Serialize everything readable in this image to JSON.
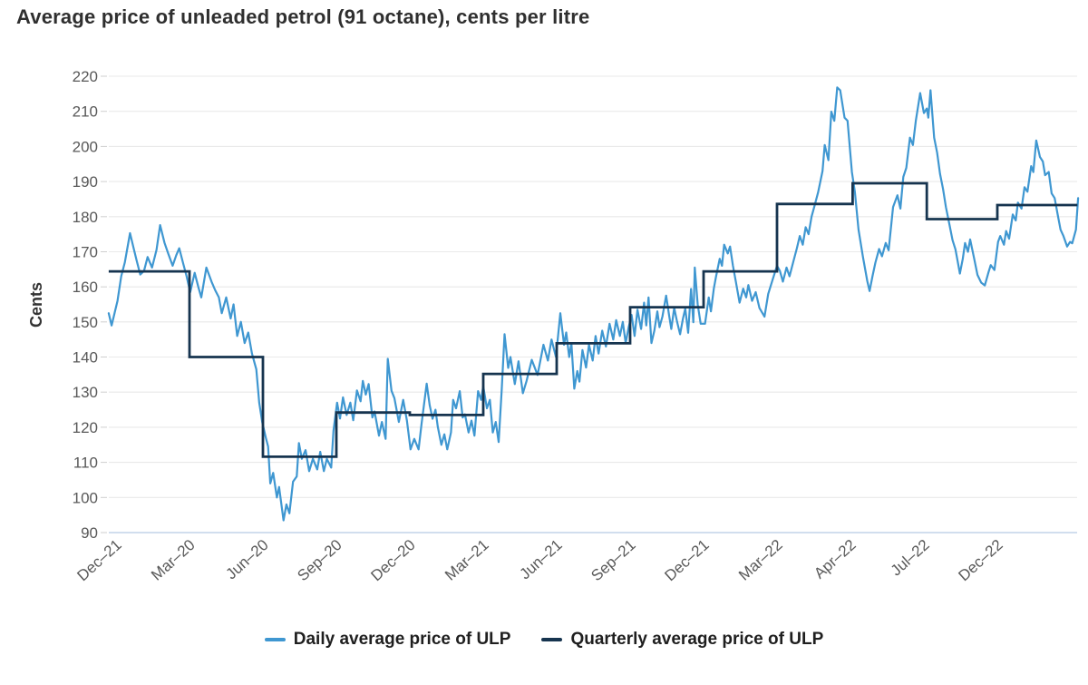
{
  "title": "Average price of unleaded petrol (91 octane), cents per litre",
  "chart_data": {
    "type": "line",
    "title": "Average price of unleaded petrol (91 octane), cents per litre",
    "xlabel": "",
    "ylabel": "Cents",
    "ylim": [
      90,
      220
    ],
    "y_ticks": [
      90,
      100,
      110,
      120,
      130,
      140,
      150,
      160,
      170,
      180,
      190,
      200,
      210,
      220
    ],
    "grid": "horizontal",
    "legend_position": "bottom-center",
    "x_tick_labels": [
      "Dec–21",
      "Mar–20",
      "Jun–20",
      "Sep–20",
      "Dec–20",
      "Mar–21",
      "Jun–21",
      "Sep–21",
      "Dec–21",
      "Mar–22",
      "Apr–22",
      "Jul–22",
      "Dec–22"
    ],
    "x_unit": "quarter index: 0 = first x tick, 1 unit = one tick interval",
    "legend": [
      {
        "label": "Daily average price of ULP",
        "color": "#3F97D1"
      },
      {
        "label": "Quarterly average price of ULP",
        "color": "#16344F"
      }
    ],
    "quarterly_steps": [
      {
        "from": -0.1,
        "to": 1.0,
        "value": 164.4
      },
      {
        "from": 1.0,
        "to": 2.0,
        "value": 140.0
      },
      {
        "from": 2.0,
        "to": 3.0,
        "value": 111.6
      },
      {
        "from": 3.0,
        "to": 4.0,
        "value": 124.2
      },
      {
        "from": 4.0,
        "to": 5.0,
        "value": 123.5
      },
      {
        "from": 5.0,
        "to": 6.0,
        "value": 135.2
      },
      {
        "from": 6.0,
        "to": 7.0,
        "value": 143.9
      },
      {
        "from": 7.0,
        "to": 8.0,
        "value": 154.2
      },
      {
        "from": 8.0,
        "to": 9.0,
        "value": 164.4
      },
      {
        "from": 9.0,
        "to": 10.03,
        "value": 183.6
      },
      {
        "from": 10.03,
        "to": 11.04,
        "value": 189.5
      },
      {
        "from": 11.04,
        "to": 12.0,
        "value": 179.3
      },
      {
        "from": 12.0,
        "to": 13.09,
        "value": 183.3
      }
    ],
    "daily_series": [
      [
        -0.1,
        152.5
      ],
      [
        -0.06,
        149.0
      ],
      [
        0.02,
        156.0
      ],
      [
        0.07,
        163.0
      ],
      [
        0.12,
        167.0
      ],
      [
        0.19,
        175.3
      ],
      [
        0.24,
        171.0
      ],
      [
        0.28,
        167.5
      ],
      [
        0.33,
        163.5
      ],
      [
        0.38,
        164.5
      ],
      [
        0.43,
        168.5
      ],
      [
        0.49,
        165.5
      ],
      [
        0.55,
        170.5
      ],
      [
        0.6,
        177.6
      ],
      [
        0.66,
        172.5
      ],
      [
        0.71,
        169.5
      ],
      [
        0.77,
        166.0
      ],
      [
        0.82,
        169.0
      ],
      [
        0.86,
        171.0
      ],
      [
        0.91,
        167.0
      ],
      [
        0.96,
        163.0
      ],
      [
        1.01,
        158.5
      ],
      [
        1.07,
        164.0
      ],
      [
        1.12,
        160.0
      ],
      [
        1.16,
        157.0
      ],
      [
        1.23,
        165.5
      ],
      [
        1.3,
        161.5
      ],
      [
        1.35,
        159.0
      ],
      [
        1.4,
        157.0
      ],
      [
        1.44,
        152.5
      ],
      [
        1.5,
        157.0
      ],
      [
        1.56,
        151.0
      ],
      [
        1.6,
        155.0
      ],
      [
        1.65,
        146.0
      ],
      [
        1.7,
        150.0
      ],
      [
        1.75,
        144.0
      ],
      [
        1.8,
        147.0
      ],
      [
        1.85,
        141.0
      ],
      [
        1.91,
        136.5
      ],
      [
        1.95,
        127.0
      ],
      [
        1.99,
        121.5
      ],
      [
        2.04,
        117.0
      ],
      [
        2.07,
        114.5
      ],
      [
        2.1,
        104.0
      ],
      [
        2.14,
        107.0
      ],
      [
        2.19,
        100.0
      ],
      [
        2.22,
        103.0
      ],
      [
        2.28,
        93.5
      ],
      [
        2.32,
        98.0
      ],
      [
        2.36,
        95.5
      ],
      [
        2.41,
        104.5
      ],
      [
        2.46,
        106.0
      ],
      [
        2.49,
        115.5
      ],
      [
        2.53,
        111.0
      ],
      [
        2.58,
        113.5
      ],
      [
        2.63,
        107.5
      ],
      [
        2.68,
        111.0
      ],
      [
        2.74,
        108.0
      ],
      [
        2.78,
        113.0
      ],
      [
        2.83,
        107.5
      ],
      [
        2.87,
        111.0
      ],
      [
        2.93,
        108.5
      ],
      [
        2.96,
        119.0
      ],
      [
        3.01,
        127.0
      ],
      [
        3.05,
        122.5
      ],
      [
        3.09,
        128.5
      ],
      [
        3.14,
        123.5
      ],
      [
        3.19,
        127.0
      ],
      [
        3.23,
        122.0
      ],
      [
        3.28,
        130.5
      ],
      [
        3.33,
        127.4
      ],
      [
        3.36,
        133.2
      ],
      [
        3.4,
        129.3
      ],
      [
        3.44,
        132.3
      ],
      [
        3.49,
        122.8
      ],
      [
        3.52,
        124.5
      ],
      [
        3.58,
        117.6
      ],
      [
        3.62,
        121.5
      ],
      [
        3.67,
        116.7
      ],
      [
        3.7,
        139.5
      ],
      [
        3.75,
        130.4
      ],
      [
        3.79,
        128.3
      ],
      [
        3.85,
        121.5
      ],
      [
        3.91,
        127.8
      ],
      [
        3.96,
        121.9
      ],
      [
        4.01,
        113.7
      ],
      [
        4.06,
        116.7
      ],
      [
        4.12,
        113.7
      ],
      [
        4.16,
        121.1
      ],
      [
        4.23,
        132.4
      ],
      [
        4.27,
        126.3
      ],
      [
        4.31,
        122.4
      ],
      [
        4.35,
        125.0
      ],
      [
        4.38,
        120.2
      ],
      [
        4.43,
        115.0
      ],
      [
        4.47,
        118.0
      ],
      [
        4.51,
        113.7
      ],
      [
        4.56,
        118.5
      ],
      [
        4.59,
        127.8
      ],
      [
        4.63,
        125.4
      ],
      [
        4.68,
        130.3
      ],
      [
        4.72,
        122.8
      ],
      [
        4.75,
        123.7
      ],
      [
        4.8,
        118.5
      ],
      [
        4.84,
        121.9
      ],
      [
        4.88,
        117.6
      ],
      [
        4.93,
        130.3
      ],
      [
        4.97,
        127.8
      ],
      [
        5.0,
        131.7
      ],
      [
        5.05,
        125.4
      ],
      [
        5.09,
        127.8
      ],
      [
        5.13,
        118.5
      ],
      [
        5.17,
        121.5
      ],
      [
        5.21,
        115.8
      ],
      [
        5.25,
        130.4
      ],
      [
        5.29,
        146.5
      ],
      [
        5.34,
        136.9
      ],
      [
        5.37,
        140.0
      ],
      [
        5.43,
        132.3
      ],
      [
        5.48,
        138.8
      ],
      [
        5.54,
        129.7
      ],
      [
        5.59,
        133.2
      ],
      [
        5.66,
        139.2
      ],
      [
        5.74,
        134.9
      ],
      [
        5.82,
        143.5
      ],
      [
        5.88,
        139.0
      ],
      [
        5.93,
        145.0
      ],
      [
        5.99,
        140.0
      ],
      [
        6.05,
        152.5
      ],
      [
        6.1,
        143.5
      ],
      [
        6.13,
        147.0
      ],
      [
        6.17,
        140.0
      ],
      [
        6.2,
        144.0
      ],
      [
        6.24,
        131.0
      ],
      [
        6.28,
        136.0
      ],
      [
        6.31,
        133.0
      ],
      [
        6.35,
        142.0
      ],
      [
        6.4,
        137.0
      ],
      [
        6.44,
        143.5
      ],
      [
        6.49,
        139.0
      ],
      [
        6.53,
        146.0
      ],
      [
        6.57,
        141.0
      ],
      [
        6.62,
        147.5
      ],
      [
        6.67,
        143.0
      ],
      [
        6.72,
        149.5
      ],
      [
        6.77,
        145.0
      ],
      [
        6.81,
        150.5
      ],
      [
        6.86,
        146.0
      ],
      [
        6.9,
        150.0
      ],
      [
        6.94,
        144.0
      ],
      [
        6.98,
        148.5
      ],
      [
        7.02,
        152.0
      ],
      [
        7.06,
        146.0
      ],
      [
        7.1,
        153.5
      ],
      [
        7.15,
        148.0
      ],
      [
        7.19,
        155.5
      ],
      [
        7.22,
        149.0
      ],
      [
        7.25,
        157.0
      ],
      [
        7.29,
        144.0
      ],
      [
        7.33,
        147.5
      ],
      [
        7.37,
        153.0
      ],
      [
        7.4,
        148.5
      ],
      [
        7.44,
        151.5
      ],
      [
        7.49,
        157.5
      ],
      [
        7.53,
        152.0
      ],
      [
        7.56,
        148.0
      ],
      [
        7.6,
        154.0
      ],
      [
        7.64,
        150.0
      ],
      [
        7.68,
        146.5
      ],
      [
        7.72,
        151.0
      ],
      [
        7.75,
        153.8
      ],
      [
        7.79,
        146.9
      ],
      [
        7.83,
        159.4
      ],
      [
        7.86,
        149.9
      ],
      [
        7.88,
        165.5
      ],
      [
        7.92,
        155.0
      ],
      [
        7.96,
        149.5
      ],
      [
        8.02,
        149.5
      ],
      [
        8.07,
        157.0
      ],
      [
        8.1,
        153.0
      ],
      [
        8.14,
        159.5
      ],
      [
        8.17,
        163.0
      ],
      [
        8.22,
        168.0
      ],
      [
        8.25,
        166.0
      ],
      [
        8.28,
        172.0
      ],
      [
        8.33,
        169.5
      ],
      [
        8.36,
        171.5
      ],
      [
        8.4,
        166.0
      ],
      [
        8.44,
        161.5
      ],
      [
        8.49,
        155.5
      ],
      [
        8.54,
        159.5
      ],
      [
        8.58,
        157.0
      ],
      [
        8.61,
        160.5
      ],
      [
        8.66,
        156.0
      ],
      [
        8.71,
        158.5
      ],
      [
        8.76,
        154.0
      ],
      [
        8.83,
        151.5
      ],
      [
        8.88,
        158.0
      ],
      [
        8.94,
        162.0
      ],
      [
        9.0,
        166.0
      ],
      [
        9.04,
        164.5
      ],
      [
        9.08,
        161.5
      ],
      [
        9.13,
        165.5
      ],
      [
        9.17,
        163.0
      ],
      [
        9.22,
        167.0
      ],
      [
        9.27,
        171.0
      ],
      [
        9.31,
        174.5
      ],
      [
        9.35,
        172.0
      ],
      [
        9.39,
        177.0
      ],
      [
        9.43,
        175.0
      ],
      [
        9.47,
        180.0
      ],
      [
        9.51,
        183.0
      ],
      [
        9.56,
        187.0
      ],
      [
        9.62,
        193.0
      ],
      [
        9.65,
        200.4
      ],
      [
        9.7,
        196.1
      ],
      [
        9.74,
        209.9
      ],
      [
        9.78,
        207.3
      ],
      [
        9.82,
        216.8
      ],
      [
        9.86,
        216.0
      ],
      [
        9.92,
        208.2
      ],
      [
        9.96,
        207.3
      ],
      [
        10.02,
        192.7
      ],
      [
        10.06,
        187.0
      ],
      [
        10.11,
        176.3
      ],
      [
        10.17,
        168.5
      ],
      [
        10.23,
        161.6
      ],
      [
        10.26,
        158.8
      ],
      [
        10.3,
        163.0
      ],
      [
        10.34,
        166.9
      ],
      [
        10.39,
        170.8
      ],
      [
        10.43,
        168.7
      ],
      [
        10.48,
        172.5
      ],
      [
        10.52,
        170.4
      ],
      [
        10.58,
        182.7
      ],
      [
        10.64,
        186.1
      ],
      [
        10.68,
        182.3
      ],
      [
        10.72,
        191.3
      ],
      [
        10.76,
        193.9
      ],
      [
        10.81,
        202.5
      ],
      [
        10.85,
        200.4
      ],
      [
        10.89,
        207.3
      ],
      [
        10.95,
        215.2
      ],
      [
        11.0,
        209.5
      ],
      [
        11.04,
        210.8
      ],
      [
        11.06,
        208.2
      ],
      [
        11.09,
        216.0
      ],
      [
        11.14,
        202.5
      ],
      [
        11.18,
        198.2
      ],
      [
        11.22,
        192.2
      ],
      [
        11.26,
        187.9
      ],
      [
        11.3,
        182.7
      ],
      [
        11.35,
        177.6
      ],
      [
        11.39,
        173.3
      ],
      [
        11.43,
        170.7
      ],
      [
        11.46,
        167.2
      ],
      [
        11.49,
        163.8
      ],
      [
        11.53,
        168.0
      ],
      [
        11.56,
        172.5
      ],
      [
        11.6,
        170.0
      ],
      [
        11.63,
        173.5
      ],
      [
        11.68,
        168.5
      ],
      [
        11.73,
        163.4
      ],
      [
        11.78,
        161.2
      ],
      [
        11.83,
        160.4
      ],
      [
        11.88,
        164.2
      ],
      [
        11.91,
        166.2
      ],
      [
        11.96,
        164.8
      ],
      [
        12.01,
        172.8
      ],
      [
        12.04,
        174.5
      ],
      [
        12.09,
        172.0
      ],
      [
        12.12,
        175.9
      ],
      [
        12.16,
        173.7
      ],
      [
        12.21,
        180.6
      ],
      [
        12.25,
        178.9
      ],
      [
        12.28,
        184.0
      ],
      [
        12.33,
        182.3
      ],
      [
        12.37,
        188.4
      ],
      [
        12.41,
        187.1
      ],
      [
        12.46,
        194.4
      ],
      [
        12.49,
        192.7
      ],
      [
        12.53,
        201.7
      ],
      [
        12.58,
        197.0
      ],
      [
        12.62,
        195.7
      ],
      [
        12.65,
        191.8
      ],
      [
        12.7,
        192.7
      ],
      [
        12.74,
        186.6
      ],
      [
        12.78,
        185.3
      ],
      [
        12.83,
        179.7
      ],
      [
        12.86,
        176.3
      ],
      [
        12.9,
        174.5
      ],
      [
        12.95,
        171.5
      ],
      [
        12.99,
        172.8
      ],
      [
        13.02,
        172.4
      ],
      [
        13.07,
        176.3
      ],
      [
        13.1,
        185.3
      ]
    ]
  },
  "colors": {
    "background": "#ffffff",
    "title_text": "#2f2f2f",
    "tick_text": "#595959",
    "axis_title_text": "#333333",
    "gridline": "#e9e9e9",
    "baseline": "#c2d3e8",
    "tick_mark": "#cfcfcf",
    "daily_line": "#3F97D1",
    "quarterly_line": "#16344F",
    "legend_text": "#1f1f1f"
  }
}
